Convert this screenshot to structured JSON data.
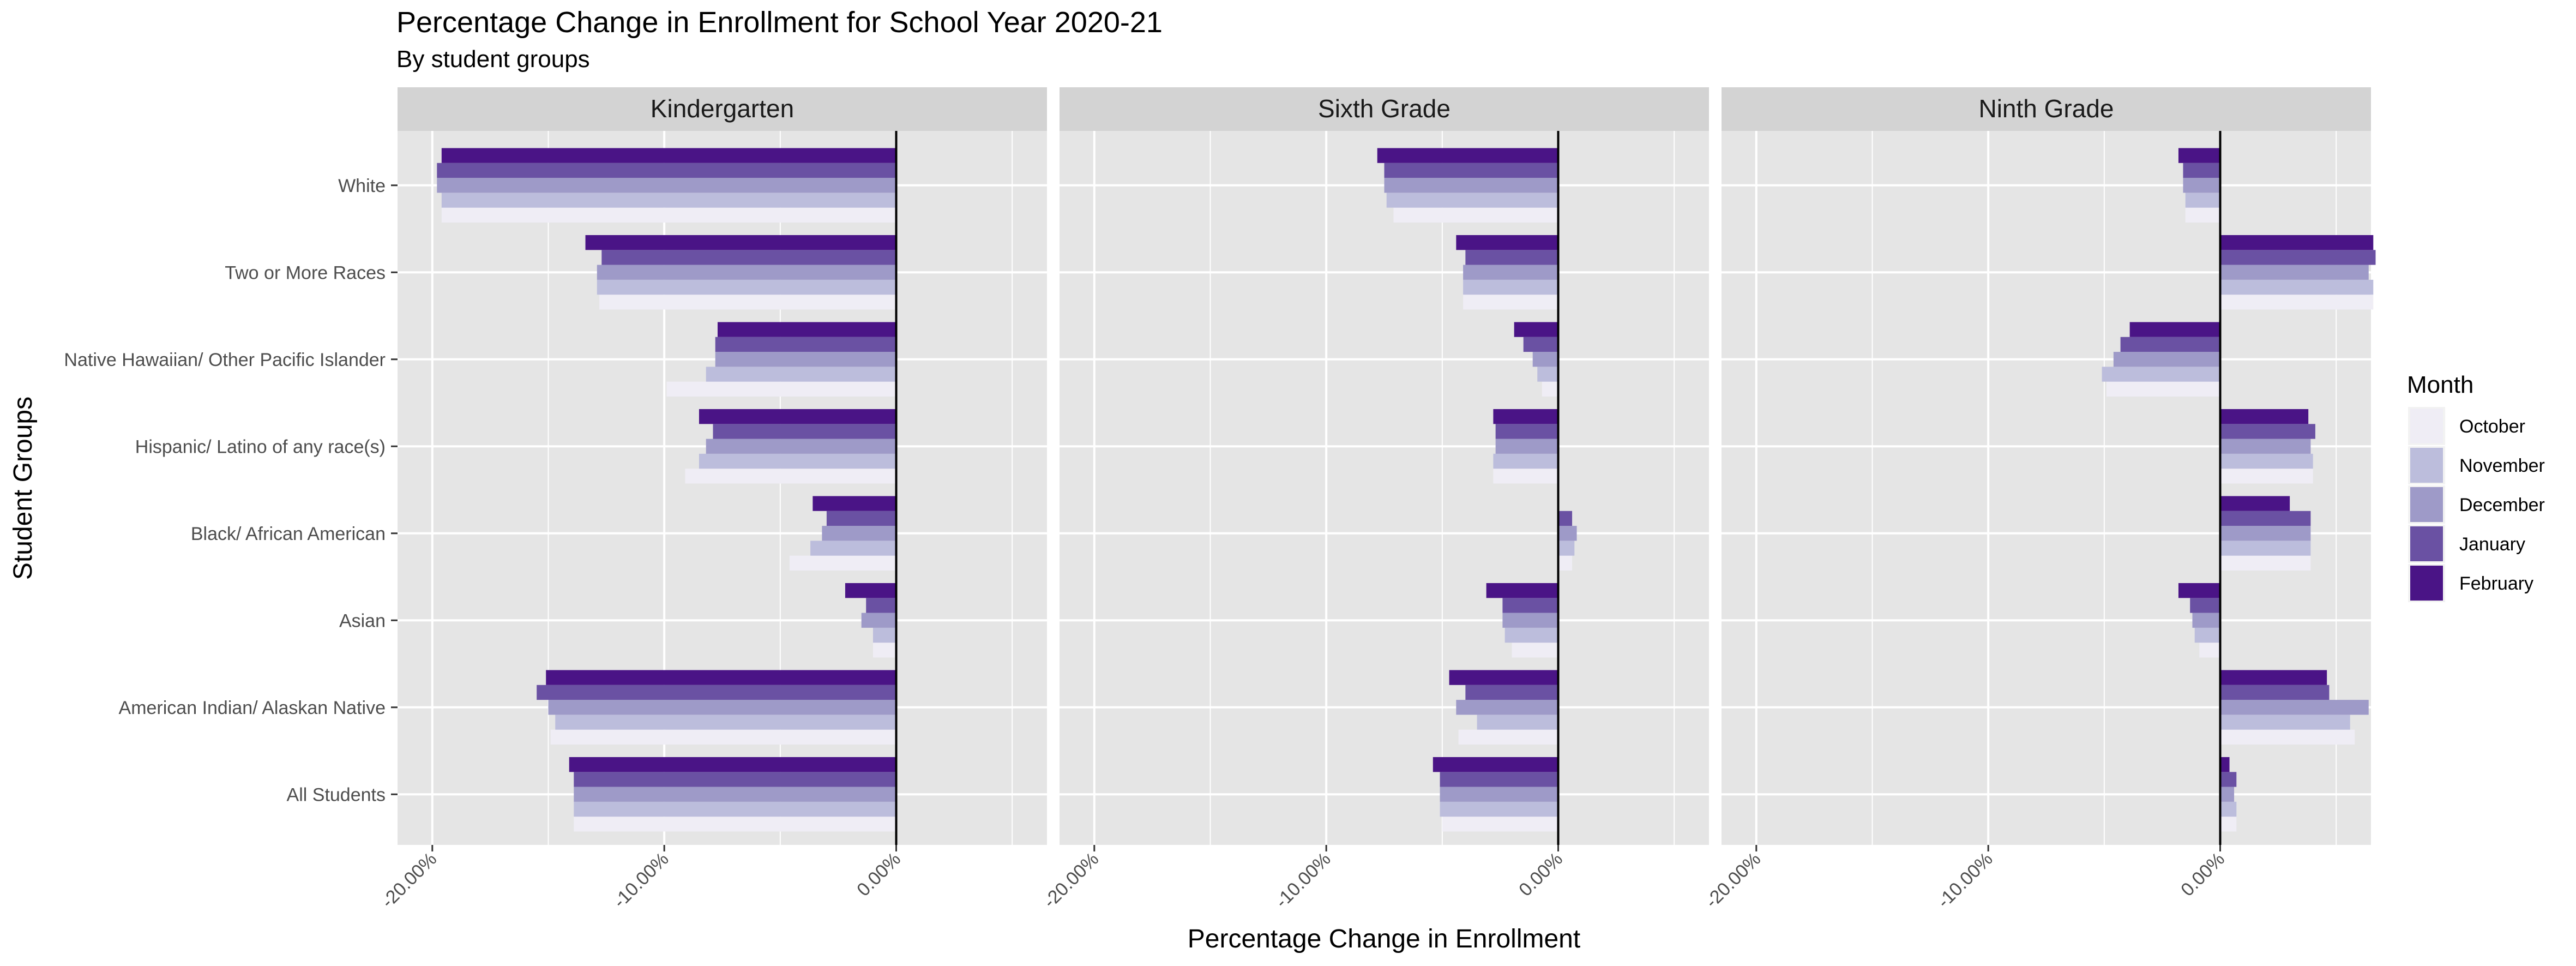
{
  "title": "Percentage Change in Enrollment for School Year 2020-21",
  "subtitle": "By student groups",
  "colors": {
    "panel_bg": "#e5e5e5",
    "strip_bg": "#d3d3d3",
    "grid": "#ffffff",
    "zero_line": "#000000"
  },
  "chart_data": {
    "type": "bar",
    "orientation": "horizontal",
    "xlabel": "Percentage Change in Enrollment",
    "ylabel": "Student Groups",
    "xlim": [
      -21.5,
      6.5
    ],
    "xticks": [
      -20,
      -10,
      0
    ],
    "xtick_labels": [
      "-20.00%",
      "-10.00%",
      "0.00%"
    ],
    "grid": true,
    "legend": {
      "title": "Month",
      "placement": "right",
      "entries": [
        "October",
        "November",
        "December",
        "January",
        "February"
      ],
      "colors": [
        "#efedf5",
        "#bcbddc",
        "#9e9ac8",
        "#6a51a3",
        "#4a1486"
      ]
    },
    "categories": [
      "White",
      "Two or More Races",
      "Native Hawaiian/ Other Pacific Islander",
      "Hispanic/ Latino of any race(s)",
      "Black/ African American",
      "Asian",
      "American Indian/ Alaskan Native",
      "All Students"
    ],
    "panels": [
      {
        "name": "Kindergarten",
        "series": [
          {
            "name": "October",
            "values": [
              -19.6,
              -12.8,
              -9.9,
              -9.1,
              -4.6,
              -1.0,
              -14.9,
              -13.9
            ]
          },
          {
            "name": "November",
            "values": [
              -19.6,
              -12.9,
              -8.2,
              -8.5,
              -3.7,
              -1.0,
              -14.7,
              -13.9
            ]
          },
          {
            "name": "December",
            "values": [
              -19.8,
              -12.9,
              -7.8,
              -8.2,
              -3.2,
              -1.5,
              -15.0,
              -13.9
            ]
          },
          {
            "name": "January",
            "values": [
              -19.8,
              -12.7,
              -7.8,
              -7.9,
              -3.0,
              -1.3,
              -15.5,
              -13.9
            ]
          },
          {
            "name": "February",
            "values": [
              -19.6,
              -13.4,
              -7.7,
              -8.5,
              -3.6,
              -2.2,
              -15.1,
              -14.1
            ]
          }
        ]
      },
      {
        "name": "Sixth Grade",
        "series": [
          {
            "name": "October",
            "values": [
              -7.1,
              -4.1,
              -0.7,
              -2.8,
              0.6,
              -2.0,
              -4.3,
              -5.0
            ]
          },
          {
            "name": "November",
            "values": [
              -7.4,
              -4.1,
              -0.9,
              -2.8,
              0.7,
              -2.3,
              -3.5,
              -5.1
            ]
          },
          {
            "name": "December",
            "values": [
              -7.5,
              -4.1,
              -1.1,
              -2.7,
              0.8,
              -2.4,
              -4.4,
              -5.1
            ]
          },
          {
            "name": "January",
            "values": [
              -7.5,
              -4.0,
              -1.5,
              -2.7,
              0.6,
              -2.4,
              -4.0,
              -5.1
            ]
          },
          {
            "name": "February",
            "values": [
              -7.8,
              -4.4,
              -1.9,
              -2.8,
              0.0,
              -3.1,
              -4.7,
              -5.4
            ]
          }
        ]
      },
      {
        "name": "Ninth Grade",
        "series": [
          {
            "name": "October",
            "values": [
              -1.5,
              6.6,
              -4.9,
              4.0,
              3.9,
              -0.9,
              5.8,
              0.7
            ]
          },
          {
            "name": "November",
            "values": [
              -1.5,
              6.6,
              -5.1,
              4.0,
              3.9,
              -1.1,
              5.6,
              0.7
            ]
          },
          {
            "name": "December",
            "values": [
              -1.6,
              6.4,
              -4.6,
              3.9,
              3.9,
              -1.2,
              6.4,
              0.6
            ]
          },
          {
            "name": "January",
            "values": [
              -1.6,
              6.7,
              -4.3,
              4.1,
              3.9,
              -1.3,
              4.7,
              0.7
            ]
          },
          {
            "name": "February",
            "values": [
              -1.8,
              6.6,
              -3.9,
              3.8,
              3.0,
              -1.8,
              4.6,
              0.4
            ]
          }
        ]
      }
    ]
  }
}
